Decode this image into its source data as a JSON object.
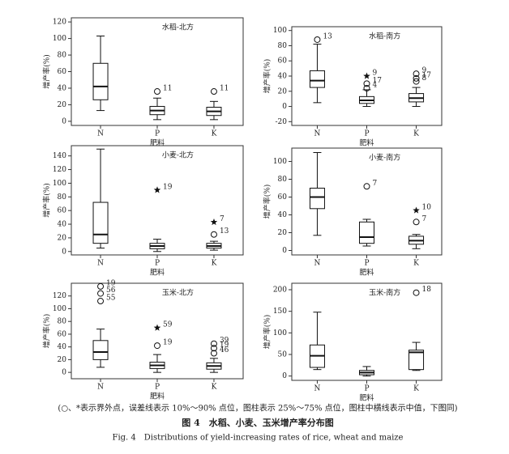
{
  "chart_data": [
    {
      "type": "box",
      "title": "水稻-北方",
      "xlabel": "肥料",
      "ylabel": "增产率(%)",
      "ylim": [
        -5,
        125
      ],
      "yticks": [
        0,
        20,
        40,
        60,
        80,
        100,
        120
      ],
      "categories": [
        "N",
        "P",
        "K"
      ],
      "boxes": [
        {
          "whisker_low": 13,
          "q1": 26,
          "median": 42,
          "q3": 70,
          "whisker_high": 103,
          "outliers": []
        },
        {
          "whisker_low": 2,
          "q1": 8,
          "median": 13,
          "q3": 18,
          "whisker_high": 28,
          "outliers": [
            {
              "value": 36,
              "label": "11",
              "marker": "circle"
            }
          ]
        },
        {
          "whisker_low": 2,
          "q1": 7,
          "median": 12,
          "q3": 17,
          "whisker_high": 24,
          "outliers": [
            {
              "value": 36,
              "label": "11",
              "marker": "circle"
            }
          ]
        }
      ]
    },
    {
      "type": "box",
      "title": "水稻-南方",
      "xlabel": "肥料",
      "ylabel": "增产率(%)",
      "ylim": [
        -25,
        105
      ],
      "yticks": [
        -20,
        0,
        20,
        40,
        60,
        80,
        100
      ],
      "categories": [
        "N",
        "P",
        "K"
      ],
      "boxes": [
        {
          "whisker_low": 5,
          "q1": 25,
          "median": 34,
          "q3": 47,
          "whisker_high": 82,
          "outliers": [
            {
              "value": 88,
              "label": "13",
              "marker": "circle"
            }
          ]
        },
        {
          "whisker_low": 0,
          "q1": 4,
          "median": 8,
          "q3": 13,
          "whisker_high": 22,
          "outliers": [
            {
              "value": 40,
              "label": "9",
              "marker": "star"
            },
            {
              "value": 30,
              "label": "17",
              "marker": "circle"
            },
            {
              "value": 24,
              "label": "4",
              "marker": "circle"
            }
          ]
        },
        {
          "whisker_low": 0,
          "q1": 6,
          "median": 11,
          "q3": 17,
          "whisker_high": 25,
          "outliers": [
            {
              "value": 43,
              "label": "9",
              "marker": "circle"
            },
            {
              "value": 37,
              "label": "17",
              "marker": "circle"
            },
            {
              "value": 33,
              "label": "8",
              "marker": "circle"
            }
          ]
        }
      ]
    },
    {
      "type": "box",
      "title": "小麦-北方",
      "xlabel": "肥料",
      "ylabel": "增产率(%)",
      "ylim": [
        -5,
        155
      ],
      "yticks": [
        0,
        20,
        40,
        60,
        80,
        100,
        120,
        140
      ],
      "categories": [
        "N",
        "P",
        "K"
      ],
      "boxes": [
        {
          "whisker_low": 5,
          "q1": 12,
          "median": 25,
          "q3": 72,
          "whisker_high": 150,
          "outliers": []
        },
        {
          "whisker_low": 0,
          "q1": 4,
          "median": 8,
          "q3": 12,
          "whisker_high": 18,
          "outliers": [
            {
              "value": 90,
              "label": "19",
              "marker": "star"
            }
          ]
        },
        {
          "whisker_low": 2,
          "q1": 5,
          "median": 8,
          "q3": 12,
          "whisker_high": 15,
          "outliers": [
            {
              "value": 43,
              "label": "7",
              "marker": "star"
            },
            {
              "value": 25,
              "label": "13",
              "marker": "circle"
            }
          ]
        }
      ]
    },
    {
      "type": "box",
      "title": "小麦-南方",
      "xlabel": "肥料",
      "ylabel": "增产率(%)",
      "ylim": [
        -5,
        115
      ],
      "yticks": [
        0,
        20,
        40,
        60,
        80,
        100
      ],
      "categories": [
        "N",
        "P",
        "K"
      ],
      "boxes": [
        {
          "whisker_low": 17,
          "q1": 47,
          "median": 60,
          "q3": 70,
          "whisker_high": 110,
          "outliers": []
        },
        {
          "whisker_low": 5,
          "q1": 8,
          "median": 15,
          "q3": 32,
          "whisker_high": 35,
          "outliers": [
            {
              "value": 72,
              "label": "7",
              "marker": "circle"
            }
          ]
        },
        {
          "whisker_low": 2,
          "q1": 7,
          "median": 11,
          "q3": 16,
          "whisker_high": 18,
          "outliers": [
            {
              "value": 45,
              "label": "10",
              "marker": "star"
            },
            {
              "value": 32,
              "label": "7",
              "marker": "circle"
            }
          ]
        }
      ]
    },
    {
      "type": "box",
      "title": "玉米-北方",
      "xlabel": "肥料",
      "ylabel": "增产率(%)",
      "ylim": [
        -10,
        140
      ],
      "yticks": [
        0,
        20,
        40,
        60,
        80,
        100,
        120
      ],
      "categories": [
        "N",
        "P",
        "K"
      ],
      "boxes": [
        {
          "whisker_low": 8,
          "q1": 20,
          "median": 32,
          "q3": 50,
          "whisker_high": 68,
          "outliers": [
            {
              "value": 135,
              "label": "19",
              "marker": "circle"
            },
            {
              "value": 124,
              "label": "56",
              "marker": "circle"
            },
            {
              "value": 112,
              "label": "55",
              "marker": "circle"
            }
          ]
        },
        {
          "whisker_low": 0,
          "q1": 6,
          "median": 11,
          "q3": 16,
          "whisker_high": 28,
          "outliers": [
            {
              "value": 70,
              "label": "59",
              "marker": "star"
            },
            {
              "value": 42,
              "label": "19",
              "marker": "circle"
            }
          ]
        },
        {
          "whisker_low": 0,
          "q1": 5,
          "median": 10,
          "q3": 15,
          "whisker_high": 22,
          "outliers": [
            {
              "value": 45,
              "label": "39",
              "marker": "circle"
            },
            {
              "value": 38,
              "label": "19",
              "marker": "circle"
            },
            {
              "value": 30,
              "label": "46",
              "marker": "circle"
            }
          ]
        }
      ]
    },
    {
      "type": "box",
      "title": "玉米-南方",
      "xlabel": "肥料",
      "ylabel": "增产率(%)",
      "ylim": [
        -10,
        215
      ],
      "yticks": [
        0,
        50,
        100,
        150,
        200
      ],
      "categories": [
        "N",
        "P",
        "K"
      ],
      "boxes": [
        {
          "whisker_low": 15,
          "q1": 20,
          "median": 47,
          "q3": 72,
          "whisker_high": 148,
          "outliers": []
        },
        {
          "whisker_low": 0,
          "q1": 3,
          "median": 8,
          "q3": 13,
          "whisker_high": 22,
          "outliers": []
        },
        {
          "whisker_low": 13,
          "q1": 15,
          "median": 55,
          "q3": 60,
          "whisker_high": 78,
          "outliers": [
            {
              "value": 193,
              "label": "18",
              "marker": "circle"
            }
          ]
        }
      ]
    }
  ],
  "caption": {
    "note": "(○、*表示界外点，误差线表示 10%～90% 点位，图柱表示 25%～75% 点位，图柱中横线表示中值，下图同)",
    "title": "图 4　水稻、小麦、玉米增产率分布图",
    "title_en": "Fig. 4　Distributions of yield-increasing rates of rice, wheat and maize"
  }
}
